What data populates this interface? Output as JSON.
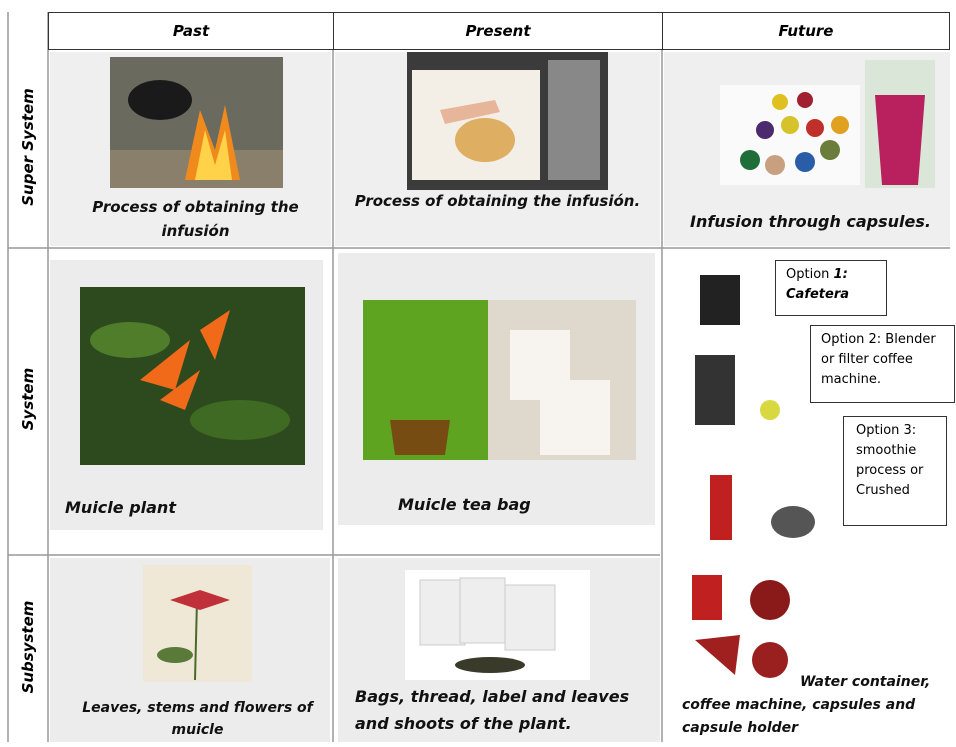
{
  "grid": {
    "columns": [
      "Past",
      "Present",
      "Future"
    ],
    "rows": [
      "Super System",
      "System",
      "Subsystem"
    ],
    "cells": [
      [
        "Process of obtaining the infusión",
        "Process of obtaining the infusión.",
        "Infusion through capsules."
      ],
      [
        "Muicle plant",
        "Muicle tea bag"
      ],
      [
        "Leaves, stems and flowers of muicle",
        "Bags, thread, label and leaves and shoots of the plant.",
        "Water container, coffee machine, capsules and capsule holder"
      ]
    ]
  },
  "options": {
    "first": {
      "prefix": "Option",
      "emphasis": "1: Cafetera"
    },
    "others": [
      "Option 2: Blender or filter coffee machine.",
      "Option 3: smoothie process or Crushed"
    ]
  }
}
